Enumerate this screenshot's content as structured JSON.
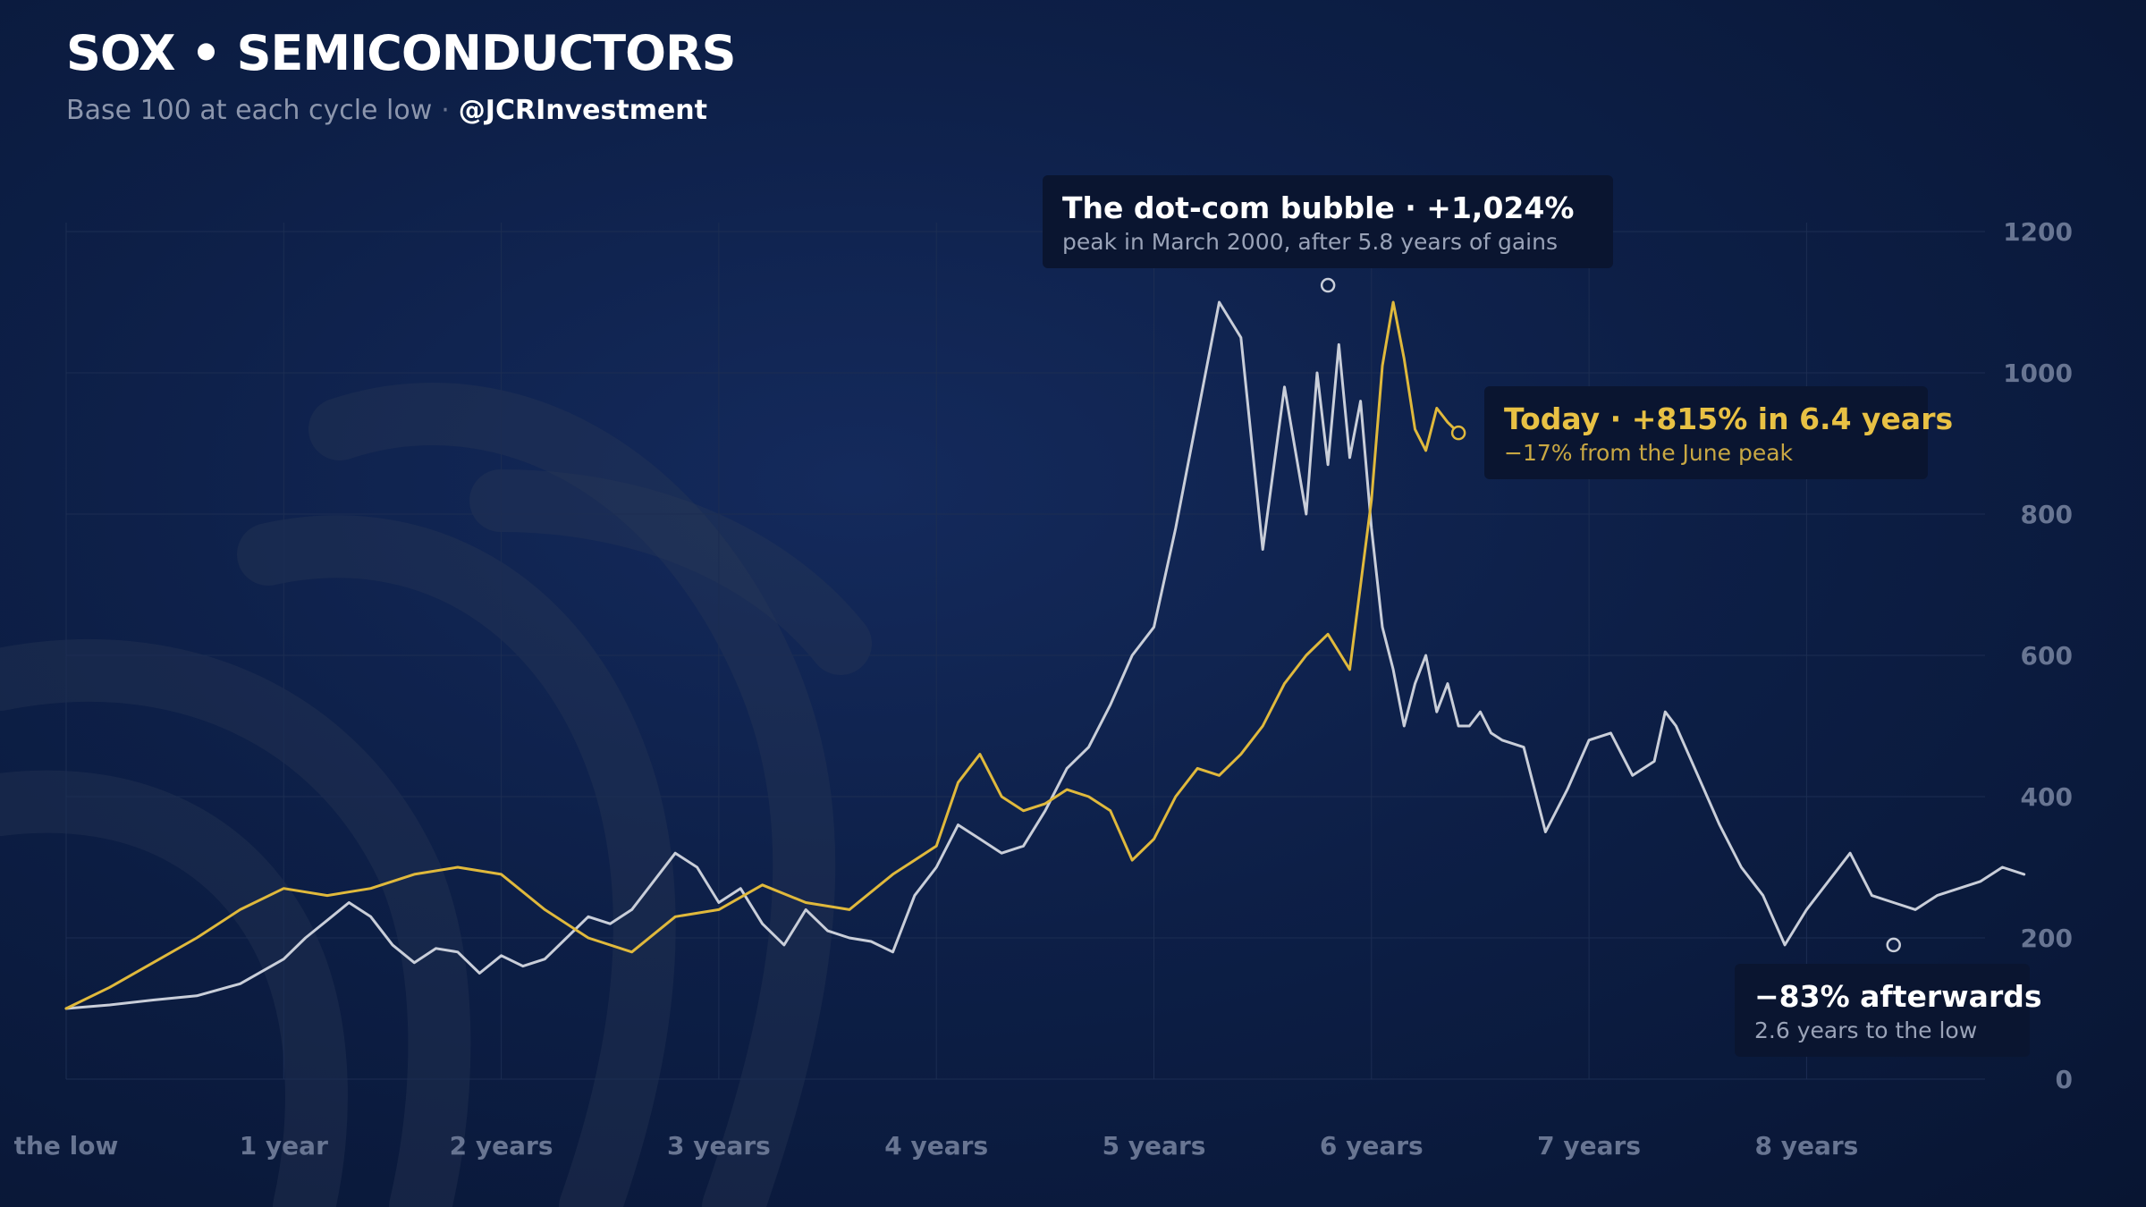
{
  "header": {
    "title": "SOX • SEMICONDUCTORS",
    "subtitle": "Base 100 at each cycle low",
    "separator": "·",
    "handle": "@JCRInvestment"
  },
  "annotations": {
    "dotcom": {
      "title": "The dot-com bubble · +1,024%",
      "subtitle": "peak in March 2000, after 5.8 years of gains"
    },
    "today": {
      "title": "Today · +815% in 6.4 years",
      "subtitle": "−17% from the June peak"
    },
    "decline": {
      "title": "−83% afterwards",
      "subtitle": "2.6 years to the low"
    }
  },
  "colors": {
    "background": "#0d1f47",
    "historical_series": "#c9ced9",
    "current_series": "#e0b93c",
    "axis_text": "#687592",
    "grid": "#1c2d52"
  },
  "chart_data": {
    "type": "line",
    "xlabel": "",
    "ylabel": "",
    "xlim": [
      0,
      9.1
    ],
    "ylim": [
      0,
      1200
    ],
    "x_ticks": [
      0,
      1,
      2,
      3,
      4,
      5,
      6,
      7,
      8
    ],
    "x_tick_labels": [
      "the low",
      "1 year",
      "2 years",
      "3 years",
      "4 years",
      "5 years",
      "6 years",
      "7 years",
      "8 years"
    ],
    "y_ticks": [
      0,
      200,
      400,
      600,
      800,
      1000,
      1200
    ],
    "y_tick_labels": [
      "0",
      "200",
      "400",
      "600",
      "800",
      "1000",
      "1200"
    ],
    "y_axis_side": "right",
    "grid": true,
    "series": [
      {
        "color": "#c9ced9",
        "x": [
          0,
          0.2,
          0.4,
          0.6,
          0.8,
          1.0,
          1.1,
          1.2,
          1.3,
          1.4,
          1.5,
          1.6,
          1.7,
          1.8,
          1.9,
          2.0,
          2.1,
          2.2,
          2.3,
          2.4,
          2.5,
          2.6,
          2.7,
          2.8,
          2.9,
          3.0,
          3.1,
          3.2,
          3.3,
          3.4,
          3.5,
          3.6,
          3.7,
          3.8,
          3.9,
          4.0,
          4.1,
          4.2,
          4.3,
          4.4,
          4.5,
          4.6,
          4.7,
          4.8,
          4.9,
          5.0,
          5.1,
          5.2,
          5.3,
          5.4,
          5.5,
          5.6,
          5.7,
          5.75,
          5.8,
          5.85,
          5.9,
          5.95,
          6.0,
          6.05,
          6.1,
          6.15,
          6.2,
          6.25,
          6.3,
          6.35,
          6.4,
          6.45,
          6.5,
          6.55,
          6.6,
          6.7,
          6.8,
          6.9,
          7.0,
          7.1,
          7.2,
          7.3,
          7.35,
          7.4,
          7.5,
          7.6,
          7.7,
          7.8,
          7.9,
          8.0,
          8.1,
          8.2,
          8.3,
          8.4,
          8.5,
          8.6,
          8.7,
          8.8,
          8.9,
          9.0
        ],
        "y": [
          100,
          105,
          112,
          118,
          135,
          170,
          200,
          225,
          250,
          230,
          190,
          165,
          185,
          180,
          150,
          175,
          160,
          170,
          200,
          230,
          220,
          240,
          280,
          320,
          300,
          250,
          270,
          220,
          190,
          240,
          210,
          200,
          195,
          180,
          260,
          300,
          360,
          340,
          320,
          330,
          380,
          440,
          470,
          530,
          600,
          640,
          780,
          940,
          1100,
          1050,
          750,
          980,
          800,
          1000,
          870,
          1040,
          880,
          960,
          780,
          640,
          580,
          500,
          560,
          600,
          520,
          560,
          500,
          500,
          520,
          490,
          480,
          470,
          350,
          410,
          480,
          490,
          430,
          450,
          520,
          500,
          430,
          360,
          300,
          260,
          190,
          240,
          280,
          320,
          260,
          250,
          240,
          260,
          270,
          280,
          300,
          290
        ],
        "marker": {
          "x": 5.8,
          "y": 1124
        }
      },
      {
        "color": "#e0b93c",
        "x": [
          0,
          0.2,
          0.4,
          0.6,
          0.8,
          1.0,
          1.2,
          1.4,
          1.6,
          1.8,
          2.0,
          2.2,
          2.4,
          2.6,
          2.8,
          3.0,
          3.2,
          3.4,
          3.6,
          3.8,
          4.0,
          4.1,
          4.2,
          4.3,
          4.4,
          4.5,
          4.6,
          4.7,
          4.8,
          4.9,
          5.0,
          5.1,
          5.2,
          5.3,
          5.4,
          5.5,
          5.6,
          5.7,
          5.8,
          5.9,
          6.0,
          6.05,
          6.1,
          6.15,
          6.2,
          6.25,
          6.3,
          6.35,
          6.4
        ],
        "y": [
          100,
          130,
          165,
          200,
          240,
          270,
          260,
          270,
          290,
          300,
          290,
          240,
          200,
          180,
          230,
          240,
          275,
          250,
          240,
          290,
          330,
          420,
          460,
          400,
          380,
          390,
          410,
          400,
          380,
          310,
          340,
          400,
          440,
          430,
          460,
          500,
          560,
          600,
          630,
          580,
          820,
          1010,
          1100,
          1020,
          920,
          890,
          950,
          930,
          915
        ],
        "marker": {
          "x": 6.4,
          "y": 915
        }
      }
    ],
    "extra_markers": [
      {
        "x": 8.4,
        "y": 190
      }
    ]
  }
}
